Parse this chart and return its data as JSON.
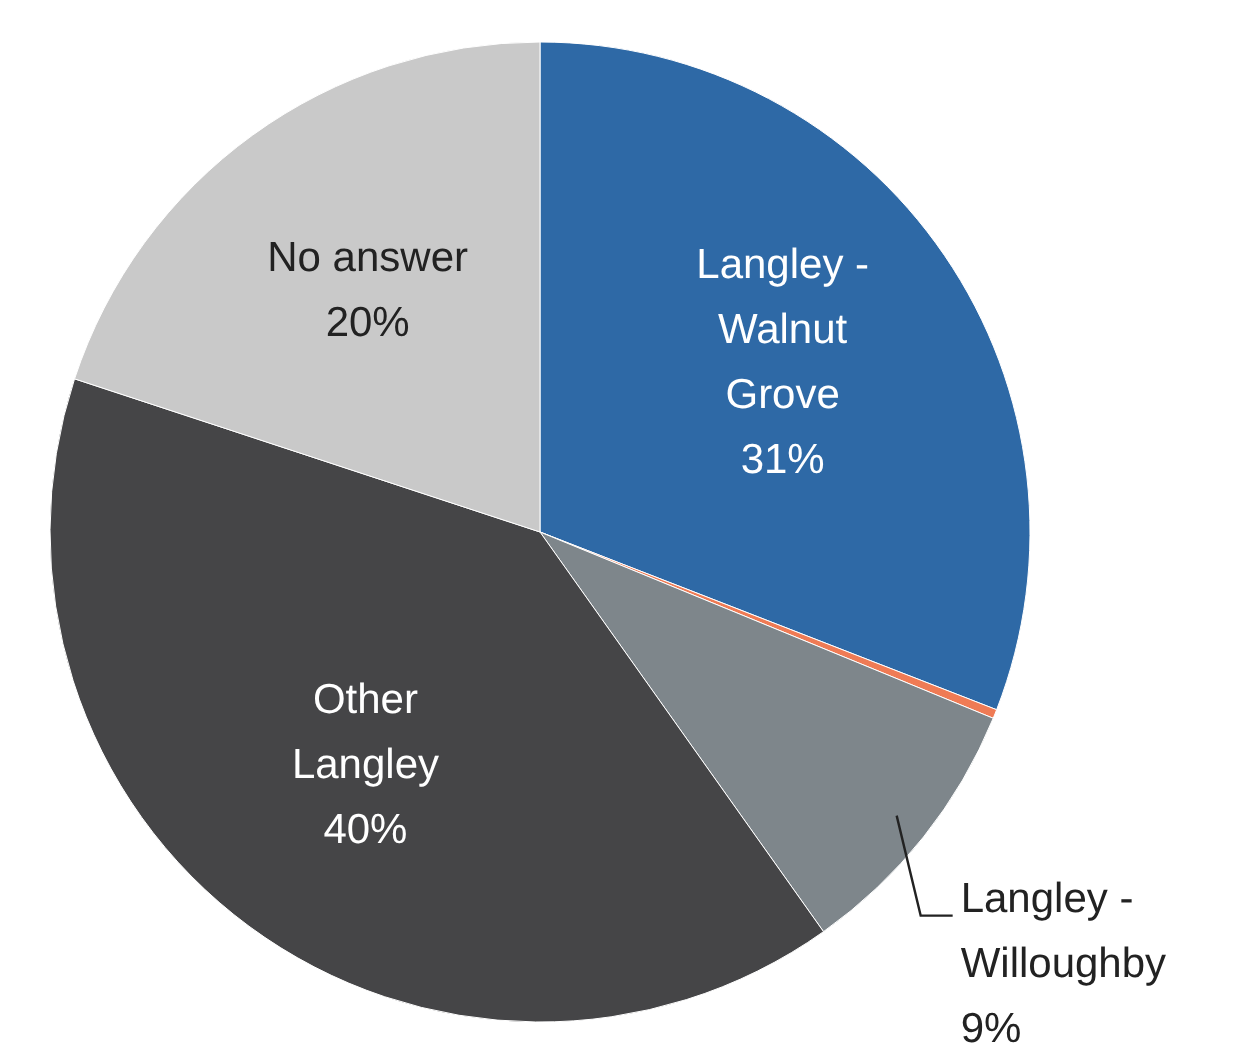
{
  "chart_data": {
    "type": "pie",
    "categories": [
      "Langley - Walnut Grove",
      null,
      "Langley - Willoughby",
      "Other Langley",
      "No answer"
    ],
    "values": [
      31,
      0.3,
      9,
      40,
      20
    ],
    "colors": [
      "#2e69a6",
      "#ef7b55",
      "#7e868b",
      "#454547",
      "#c9c9c9"
    ],
    "value_labels": [
      "31%",
      null,
      "9%",
      "40%",
      "20%"
    ]
  }
}
